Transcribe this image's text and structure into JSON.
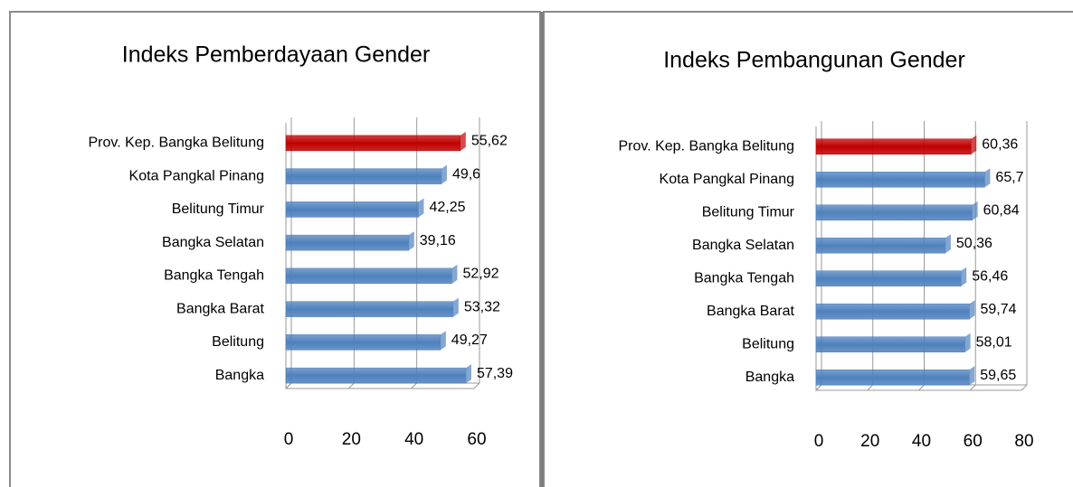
{
  "chart_data": [
    {
      "type": "bar",
      "title": "Indeks Pemberdayaan Gender",
      "categories": [
        "Prov. Kep. Bangka Belitung",
        "Kota Pangkal Pinang",
        "Belitung Timur",
        "Bangka Selatan",
        "Bangka Tengah",
        "Bangka Barat",
        "Belitung",
        "Bangka"
      ],
      "values": [
        55.62,
        49.6,
        42.25,
        39.16,
        52.92,
        53.32,
        49.27,
        57.39
      ],
      "value_labels": [
        "55,62",
        "49,6",
        "42,25",
        "39,16",
        "52,92",
        "53,32",
        "49,27",
        "57,39"
      ],
      "colors": [
        "#c00000",
        "#4f81bd",
        "#4f81bd",
        "#4f81bd",
        "#4f81bd",
        "#4f81bd",
        "#4f81bd",
        "#4f81bd"
      ],
      "xlim": [
        0,
        60
      ],
      "xticks": [
        0,
        20,
        40,
        60
      ],
      "grid": true
    },
    {
      "type": "bar",
      "title": "Indeks Pembangunan  Gender",
      "categories": [
        "Prov. Kep. Bangka Belitung",
        "Kota Pangkal Pinang",
        "Belitung Timur",
        "Bangka Selatan",
        "Bangka Tengah",
        "Bangka Barat",
        "Belitung",
        "Bangka"
      ],
      "values": [
        60.36,
        65.7,
        60.84,
        50.36,
        56.46,
        59.74,
        58.01,
        59.65
      ],
      "value_labels": [
        "60,36",
        "65,7",
        "60,84",
        "50,36",
        "56,46",
        "59,74",
        "58,01",
        "59,65"
      ],
      "colors": [
        "#c00000",
        "#4f81bd",
        "#4f81bd",
        "#4f81bd",
        "#4f81bd",
        "#4f81bd",
        "#4f81bd",
        "#4f81bd"
      ],
      "xlim": [
        0,
        80
      ],
      "xticks": [
        0,
        20,
        40,
        60,
        80
      ],
      "grid": true
    }
  ]
}
